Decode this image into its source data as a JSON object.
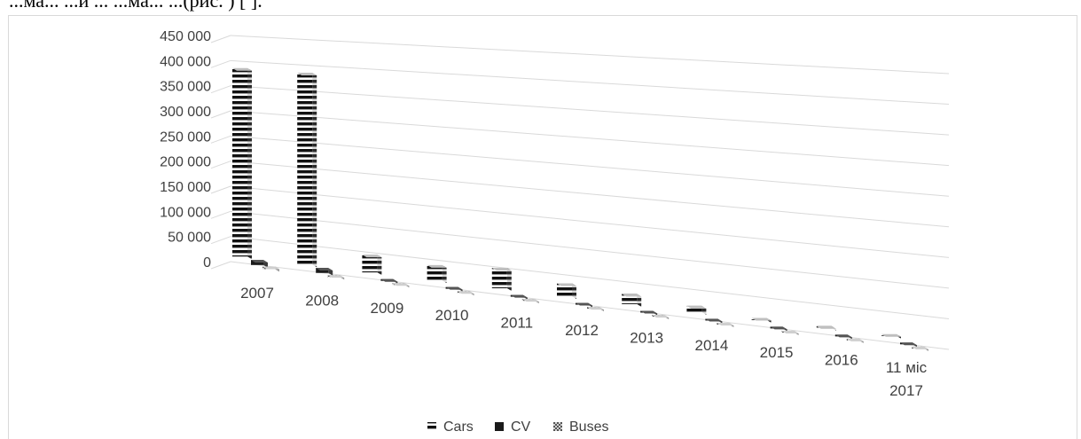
{
  "header": {
    "caption_fragment": "...ма... ...и ... ...ма... ...(рис. ) [ ]."
  },
  "chart_data": {
    "type": "bar",
    "subtype": "3d-clustered-column",
    "categories": [
      "2007",
      "2008",
      "2009",
      "2010",
      "2011",
      "2012",
      "2013",
      "2014",
      "2015",
      "2016",
      "11 міс 2017"
    ],
    "series": [
      {
        "name": "Cars",
        "values": [
          375000,
          380000,
          35000,
          30000,
          40000,
          25000,
          20000,
          12000,
          4000,
          3000,
          3000
        ],
        "pattern": "h-stripes"
      },
      {
        "name": "CV",
        "values": [
          10000,
          10000,
          2000,
          2000,
          3000,
          2000,
          1500,
          1000,
          1000,
          1000,
          1000
        ],
        "pattern": "dark"
      },
      {
        "name": "Buses",
        "values": [
          5000,
          4000,
          1500,
          1500,
          1500,
          1200,
          1000,
          800,
          600,
          600,
          600
        ],
        "pattern": "checker"
      }
    ],
    "y_ticks": [
      "450 000",
      "400 000",
      "350 000",
      "300 000",
      "250 000",
      "200 000",
      "150 000",
      "100 000",
      "50 000",
      "0"
    ],
    "ylim": [
      0,
      450000
    ],
    "grid": true,
    "legend_position": "bottom",
    "colors": {
      "grid": "#d9d9d9",
      "text": "#404040",
      "bar_dark": "#1a1a1a"
    }
  }
}
